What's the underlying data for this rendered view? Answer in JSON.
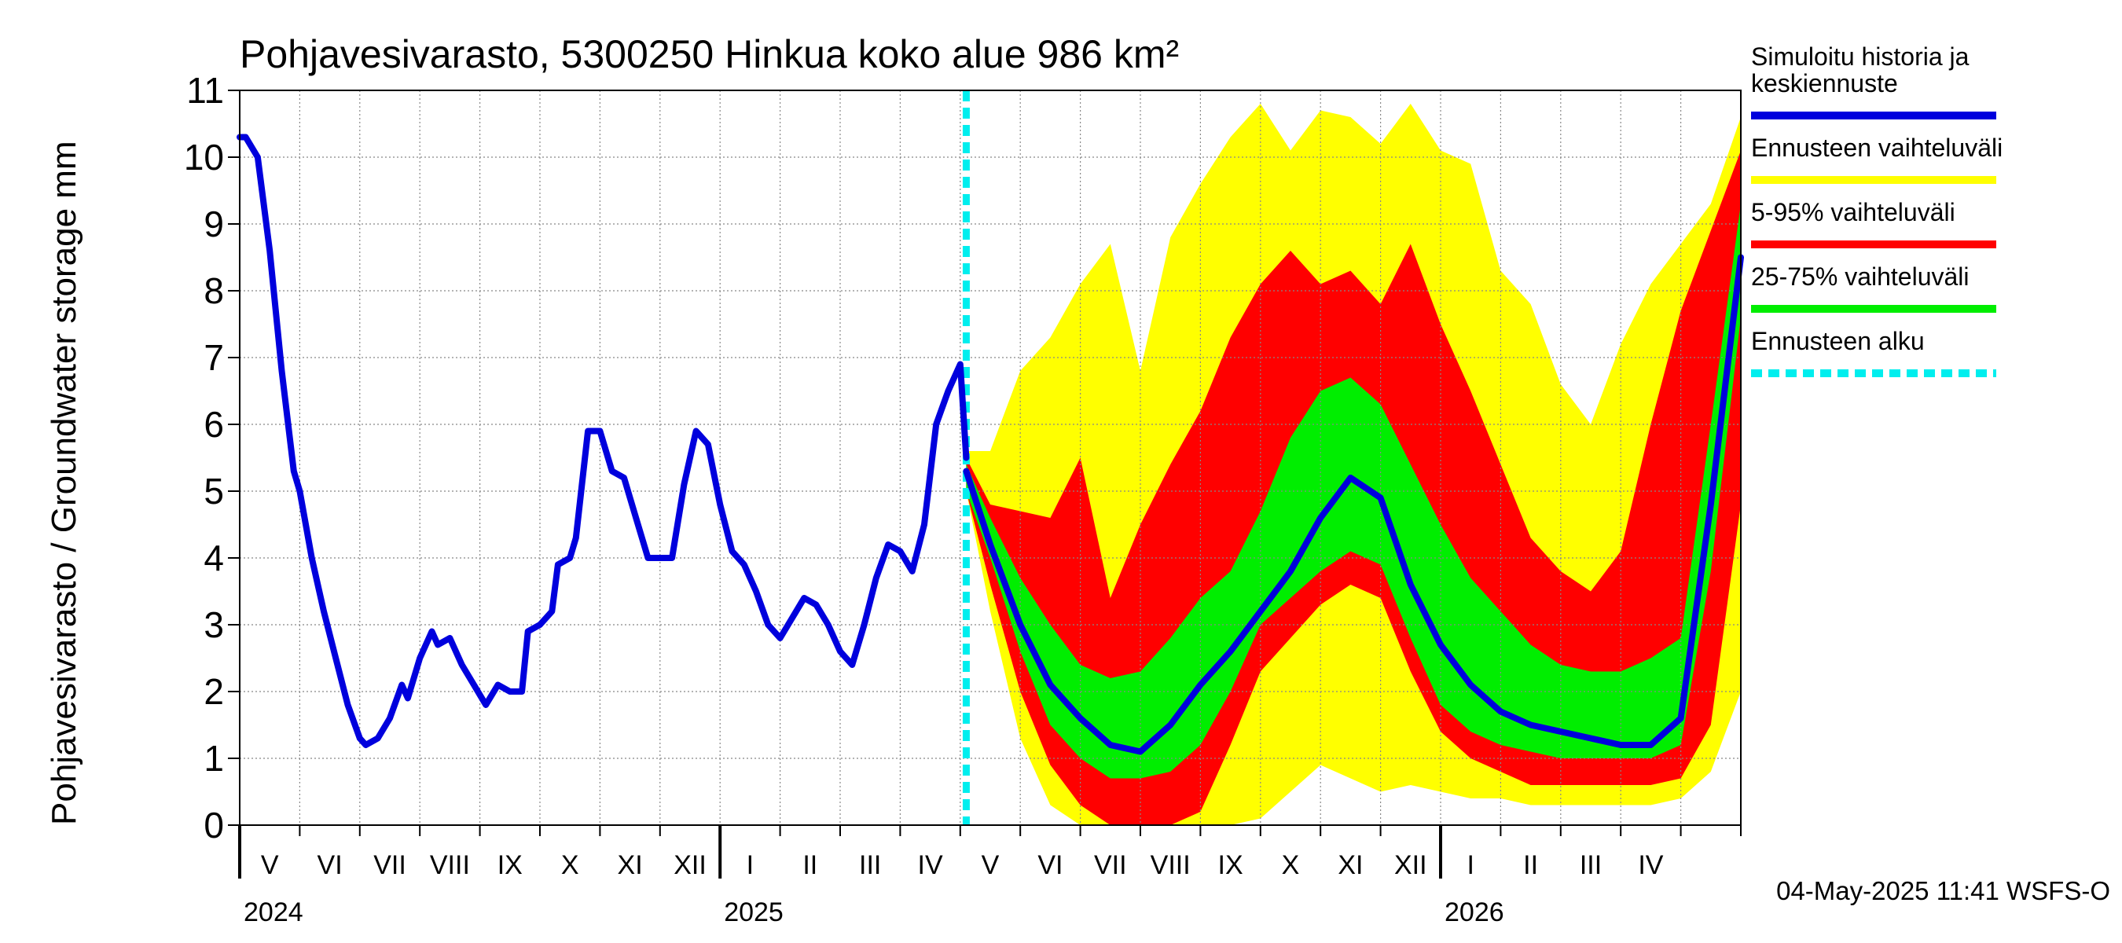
{
  "chart_data": {
    "type": "area",
    "title": "Pohjavesivarasto, 5300250 Hinkua koko alue 986 km²",
    "ylabel": "Pohjavesivarasto / Groundwater storage   mm",
    "xlabel": "",
    "ylim": [
      0,
      11
    ],
    "yticks": [
      0,
      1,
      2,
      3,
      4,
      5,
      6,
      7,
      8,
      9,
      10,
      11
    ],
    "grid": true,
    "x_unit": "months since 2024-04-01",
    "xlim": [
      0,
      25
    ],
    "month_labels": [
      {
        "label": "V",
        "at": 0.5
      },
      {
        "label": "VI",
        "at": 1.5
      },
      {
        "label": "VII",
        "at": 2.5
      },
      {
        "label": "VIII",
        "at": 3.5
      },
      {
        "label": "IX",
        "at": 4.5
      },
      {
        "label": "X",
        "at": 5.5
      },
      {
        "label": "XI",
        "at": 6.5
      },
      {
        "label": "XII",
        "at": 7.5
      },
      {
        "label": "I",
        "at": 8.5
      },
      {
        "label": "II",
        "at": 9.5
      },
      {
        "label": "III",
        "at": 10.5
      },
      {
        "label": "IV",
        "at": 11.5
      },
      {
        "label": "V",
        "at": 12.5
      },
      {
        "label": "VI",
        "at": 13.5
      },
      {
        "label": "VII",
        "at": 14.5
      },
      {
        "label": "VIII",
        "at": 15.5
      },
      {
        "label": "IX",
        "at": 16.5
      },
      {
        "label": "X",
        "at": 17.5
      },
      {
        "label": "XI",
        "at": 18.5
      },
      {
        "label": "XII",
        "at": 19.5
      },
      {
        "label": "I",
        "at": 20.5
      },
      {
        "label": "II",
        "at": 21.5
      },
      {
        "label": "III",
        "at": 22.5
      },
      {
        "label": "IV",
        "at": 23.5
      }
    ],
    "year_labels": [
      {
        "label": "2024",
        "at": 0
      },
      {
        "label": "2025",
        "at": 8
      },
      {
        "label": "2026",
        "at": 20
      }
    ],
    "forecast_start": 12.1,
    "history": {
      "x": [
        0,
        0.1,
        0.3,
        0.5,
        0.7,
        0.9,
        1.0,
        1.2,
        1.4,
        1.6,
        1.8,
        2.0,
        2.1,
        2.3,
        2.5,
        2.7,
        2.8,
        3.0,
        3.2,
        3.3,
        3.5,
        3.7,
        3.9,
        4.1,
        4.3,
        4.5,
        4.7,
        4.8,
        5.0,
        5.2,
        5.3,
        5.5,
        5.6,
        5.8,
        6.0,
        6.2,
        6.4,
        6.6,
        6.8,
        7.0,
        7.2,
        7.4,
        7.6,
        7.8,
        8.0,
        8.2,
        8.4,
        8.6,
        8.8,
        9.0,
        9.2,
        9.4,
        9.6,
        9.8,
        10.0,
        10.2,
        10.4,
        10.6,
        10.8,
        11.0,
        11.2,
        11.4,
        11.6,
        11.8,
        12.0,
        12.1
      ],
      "values": [
        10.3,
        10.3,
        10.0,
        8.6,
        6.8,
        5.3,
        5.0,
        4.0,
        3.2,
        2.5,
        1.8,
        1.3,
        1.2,
        1.3,
        1.6,
        2.1,
        1.9,
        2.5,
        2.9,
        2.7,
        2.8,
        2.4,
        2.1,
        1.8,
        2.1,
        2.0,
        2.0,
        2.9,
        3.0,
        3.2,
        3.9,
        4.0,
        4.3,
        5.9,
        5.9,
        5.3,
        5.2,
        4.6,
        4.0,
        4.0,
        4.0,
        5.1,
        5.9,
        5.7,
        4.8,
        4.1,
        3.9,
        3.5,
        3.0,
        2.8,
        3.1,
        3.4,
        3.3,
        3.0,
        2.6,
        2.4,
        3.0,
        3.7,
        4.2,
        4.1,
        3.8,
        4.5,
        6.0,
        6.5,
        6.9,
        5.5
      ]
    },
    "forecast": {
      "x": [
        12.1,
        12.5,
        13.0,
        13.5,
        14.0,
        14.5,
        15.0,
        15.5,
        16.0,
        16.5,
        17.0,
        17.5,
        18.0,
        18.5,
        19.0,
        19.5,
        20.0,
        20.5,
        21.0,
        21.5,
        22.0,
        22.5,
        23.0,
        23.5,
        24.0,
        24.5,
        25.0
      ],
      "min": [
        5.0,
        3.2,
        1.3,
        0.3,
        0.0,
        0.0,
        0.0,
        0.0,
        0.0,
        0.0,
        0.1,
        0.5,
        0.9,
        0.7,
        0.5,
        0.6,
        0.5,
        0.4,
        0.4,
        0.3,
        0.3,
        0.3,
        0.3,
        0.3,
        0.4,
        0.8,
        2.0
      ],
      "p5": [
        5.0,
        3.6,
        2.0,
        0.9,
        0.3,
        0.0,
        0.0,
        0.0,
        0.2,
        1.2,
        2.3,
        2.8,
        3.3,
        3.6,
        3.4,
        2.3,
        1.4,
        1.0,
        0.8,
        0.6,
        0.6,
        0.6,
        0.6,
        0.6,
        0.7,
        1.5,
        4.8
      ],
      "p25": [
        5.0,
        4.0,
        2.6,
        1.5,
        1.0,
        0.7,
        0.7,
        0.8,
        1.2,
        2.0,
        3.0,
        3.4,
        3.8,
        4.1,
        3.9,
        2.8,
        1.8,
        1.4,
        1.2,
        1.1,
        1.0,
        1.0,
        1.0,
        1.0,
        1.2,
        3.8,
        7.6
      ],
      "median": [
        5.3,
        4.2,
        3.0,
        2.1,
        1.6,
        1.2,
        1.1,
        1.5,
        2.1,
        2.6,
        3.2,
        3.8,
        4.6,
        5.2,
        4.9,
        3.6,
        2.7,
        2.1,
        1.7,
        1.5,
        1.4,
        1.3,
        1.2,
        1.2,
        1.6,
        4.8,
        8.5
      ],
      "p75": [
        5.4,
        4.6,
        3.7,
        3.0,
        2.4,
        2.2,
        2.3,
        2.8,
        3.4,
        3.8,
        4.7,
        5.8,
        6.5,
        6.7,
        6.3,
        5.4,
        4.5,
        3.7,
        3.2,
        2.7,
        2.4,
        2.3,
        2.3,
        2.5,
        2.8,
        6.0,
        9.3
      ],
      "p95": [
        5.5,
        4.8,
        4.7,
        4.6,
        5.5,
        3.4,
        4.5,
        5.4,
        6.2,
        7.3,
        8.1,
        8.6,
        8.1,
        8.3,
        7.8,
        8.7,
        7.5,
        6.5,
        5.4,
        4.3,
        3.8,
        3.5,
        4.1,
        6.0,
        7.7,
        8.9,
        10.1
      ],
      "max": [
        5.6,
        5.6,
        6.8,
        7.3,
        8.1,
        8.7,
        6.8,
        8.8,
        9.6,
        10.3,
        10.8,
        10.1,
        10.7,
        10.6,
        10.2,
        10.8,
        10.1,
        9.9,
        8.3,
        7.8,
        6.6,
        6.0,
        7.2,
        8.1,
        8.7,
        9.3,
        10.6
      ]
    },
    "legend": [
      {
        "label": "Simuloitu historia ja\nkeskiennuste",
        "color": "#0000dd",
        "style": "solid"
      },
      {
        "label": "Ennusteen vaihteluväli",
        "color": "#ffff00",
        "style": "solid"
      },
      {
        "label": "5-95% vaihteluväli",
        "color": "#ff0000",
        "style": "solid"
      },
      {
        "label": "25-75% vaihteluväli",
        "color": "#00ee00",
        "style": "solid"
      },
      {
        "label": "Ennusteen alku",
        "color": "#00eeee",
        "style": "dashed"
      }
    ],
    "legend_position": "right",
    "footer": "04-May-2025 11:41 WSFS-O"
  }
}
